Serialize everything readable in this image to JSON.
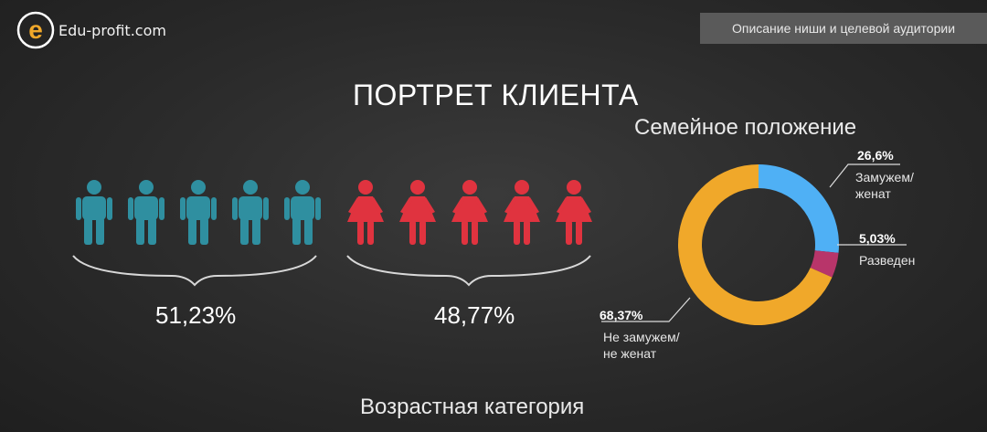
{
  "header": {
    "logo_text": "Edu-profit.com",
    "logo_glyph": "e",
    "tag": "Описание ниши и целевой аудитории"
  },
  "title": "ПОРТРЕТ КЛИЕНТА",
  "colors": {
    "men": "#2f8fa0",
    "women": "#e0333f",
    "married": "#4fb0f5",
    "divorced": "#b8356a",
    "single": "#f0a82a"
  },
  "gender": {
    "men_percent": "51,23%",
    "women_percent": "48,77%",
    "icons_per_group": 5
  },
  "chart_data": {
    "type": "pie",
    "title": "Семейное положение",
    "donut": true,
    "slices": [
      {
        "value": 26.6,
        "value_label": "26,6%",
        "label_lines": [
          "Замужем/",
          "женат"
        ],
        "color": "#4fb0f5"
      },
      {
        "value": 5.03,
        "value_label": "5,03%",
        "label_lines": [
          "Разведен"
        ],
        "color": "#b8356a"
      },
      {
        "value": 68.37,
        "value_label": "68,37%",
        "label_lines": [
          "Не замужем/",
          "не женат"
        ],
        "color": "#f0a82a"
      }
    ]
  },
  "age_section_title": "Возрастная категория"
}
